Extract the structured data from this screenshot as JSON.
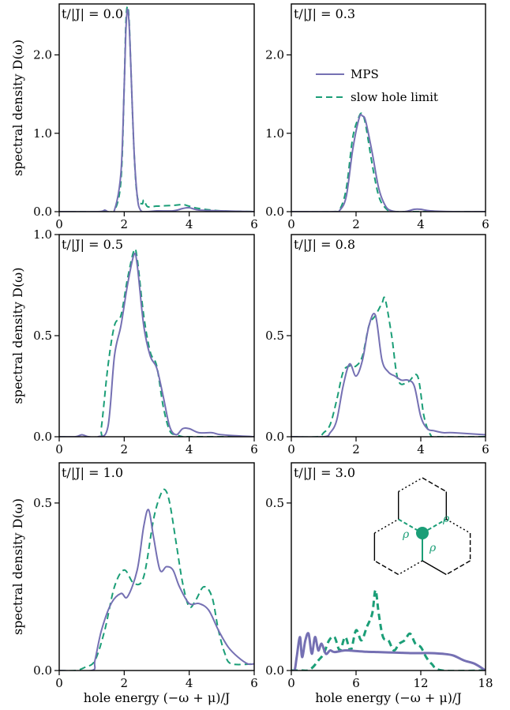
{
  "colors": {
    "mps": "#7570b3",
    "slow": "#1b9e77",
    "lattice": "#000000"
  },
  "figure": {
    "ylabel": "spectral density D(ω)",
    "xlabel": "hole energy (−ω + μ)/J"
  },
  "legend": {
    "placement": "upper-right of panel t/|J| = 0.3",
    "entries": [
      {
        "label": "MPS",
        "style": "solid",
        "color": "#7570b3"
      },
      {
        "label": "slow hole limit",
        "style": "dashed",
        "color": "#1b9e77"
      }
    ]
  },
  "inset": {
    "description_icon": "honeycomb-lattice-icon",
    "bond_label": "ρ"
  },
  "chart_data": [
    {
      "type": "line",
      "panel_label": "t/|J| = 0.0",
      "xlim": [
        0,
        6
      ],
      "ylim": [
        0,
        2.65
      ],
      "xticks": [
        0,
        2,
        4,
        6
      ],
      "xtick_labels": [
        "0",
        "2",
        "4",
        "6"
      ],
      "yticks": [
        0,
        1,
        2
      ],
      "ytick_labels": [
        "0.0",
        "1.0",
        "2.0"
      ],
      "show_ylabel": true,
      "show_xlabel": false,
      "series": [
        {
          "name": "MPS",
          "style": "solid",
          "x": [
            0,
            1.2,
            1.4,
            1.5,
            1.7,
            1.9,
            2.0,
            2.05,
            2.1,
            2.15,
            2.2,
            2.3,
            2.4,
            2.5,
            2.7,
            3.0,
            3.5,
            3.8,
            4.0,
            4.3,
            5.0,
            6.0
          ],
          "y": [
            0,
            0,
            0.02,
            0.0,
            0.02,
            0.5,
            1.6,
            2.3,
            2.58,
            2.4,
            1.9,
            0.8,
            0.2,
            0.02,
            0.0,
            0.01,
            0.01,
            0.04,
            0.05,
            0.02,
            0.01,
            0.0
          ]
        },
        {
          "name": "slow hole limit",
          "style": "dashed",
          "x": [
            0,
            1.5,
            1.7,
            1.9,
            2.0,
            2.05,
            2.1,
            2.15,
            2.2,
            2.3,
            2.4,
            2.55,
            2.6,
            2.7,
            2.8,
            3.0,
            3.5,
            3.8,
            4.0,
            4.3,
            5.0,
            6.0
          ],
          "y": [
            0,
            0,
            0.01,
            0.4,
            1.6,
            2.4,
            2.62,
            2.45,
            1.9,
            0.8,
            0.2,
            0.1,
            0.15,
            0.07,
            0.06,
            0.07,
            0.08,
            0.09,
            0.07,
            0.04,
            0.01,
            0.0
          ]
        }
      ]
    },
    {
      "type": "line",
      "panel_label": "t/|J| = 0.3",
      "xlim": [
        0,
        6
      ],
      "ylim": [
        0,
        2.65
      ],
      "xticks": [
        0,
        2,
        4,
        6
      ],
      "xtick_labels": [
        "0",
        "2",
        "4",
        "6"
      ],
      "yticks": [
        0,
        1,
        2
      ],
      "ytick_labels": [
        "0.0",
        "1.0",
        "2.0"
      ],
      "show_ylabel": false,
      "show_xlabel": false,
      "series": [
        {
          "name": "MPS",
          "style": "solid",
          "x": [
            0,
            1.3,
            1.5,
            1.7,
            1.9,
            2.1,
            2.2,
            2.3,
            2.5,
            2.7,
            2.9,
            3.1,
            3.5,
            3.8,
            4.0,
            4.3,
            5.0,
            6.0
          ],
          "y": [
            0,
            0,
            0.02,
            0.2,
            0.8,
            1.2,
            1.22,
            1.15,
            0.75,
            0.3,
            0.08,
            0.01,
            0.0,
            0.03,
            0.03,
            0.01,
            0.0,
            0.0
          ]
        },
        {
          "name": "slow hole limit",
          "style": "dashed",
          "x": [
            0,
            1.3,
            1.5,
            1.7,
            1.9,
            2.1,
            2.2,
            2.3,
            2.5,
            2.7,
            2.9,
            3.1,
            3.5,
            6.0
          ],
          "y": [
            0,
            0,
            0.03,
            0.3,
            0.95,
            1.22,
            1.24,
            1.1,
            0.6,
            0.2,
            0.05,
            0.0,
            0.0,
            0.0
          ]
        }
      ]
    },
    {
      "type": "line",
      "panel_label": "t/|J| = 0.5",
      "xlim": [
        0,
        6
      ],
      "ylim": [
        0,
        1.0
      ],
      "xticks": [
        0,
        2,
        4,
        6
      ],
      "xtick_labels": [
        "0",
        "2",
        "4",
        "6"
      ],
      "yticks": [
        0,
        0.5,
        1.0
      ],
      "ytick_labels": [
        "0.0",
        "0.5",
        "1.0"
      ],
      "show_ylabel": true,
      "show_xlabel": false,
      "series": [
        {
          "name": "MPS",
          "style": "solid",
          "x": [
            0,
            0.5,
            0.7,
            0.9,
            1.2,
            1.5,
            1.7,
            1.9,
            2.1,
            2.3,
            2.4,
            2.6,
            2.8,
            3.0,
            3.2,
            3.4,
            3.6,
            3.8,
            4.0,
            4.3,
            4.7,
            5.0,
            6.0
          ],
          "y": [
            0,
            0.0,
            0.01,
            0.0,
            0.0,
            0.05,
            0.4,
            0.55,
            0.75,
            0.9,
            0.85,
            0.55,
            0.4,
            0.34,
            0.2,
            0.05,
            0.01,
            0.04,
            0.04,
            0.02,
            0.02,
            0.01,
            0.0
          ]
        },
        {
          "name": "slow hole limit",
          "style": "dashed",
          "x": [
            0,
            1.2,
            1.3,
            1.5,
            1.7,
            1.9,
            2.1,
            2.3,
            2.4,
            2.6,
            2.8,
            3.0,
            3.2,
            3.4,
            3.6,
            3.8,
            4.0,
            6.0
          ],
          "y": [
            0,
            0,
            0.05,
            0.35,
            0.55,
            0.6,
            0.78,
            0.92,
            0.88,
            0.6,
            0.42,
            0.35,
            0.15,
            0.03,
            0.01,
            0.0,
            0.0,
            0.0
          ]
        }
      ]
    },
    {
      "type": "line",
      "panel_label": "t/|J| = 0.8",
      "xlim": [
        0,
        6
      ],
      "ylim": [
        0,
        1.0
      ],
      "xticks": [
        0,
        2,
        4,
        6
      ],
      "xtick_labels": [
        "0",
        "2",
        "4",
        "6"
      ],
      "yticks": [
        0,
        0.5
      ],
      "ytick_labels": [
        "0.0",
        "0.5"
      ],
      "show_ylabel": false,
      "show_xlabel": false,
      "series": [
        {
          "name": "MPS",
          "style": "solid",
          "x": [
            0,
            1.0,
            1.2,
            1.4,
            1.6,
            1.8,
            2.0,
            2.2,
            2.4,
            2.6,
            2.8,
            3.0,
            3.2,
            3.4,
            3.6,
            3.8,
            4.0,
            4.2,
            4.4,
            4.7,
            5.0,
            6.0
          ],
          "y": [
            0,
            0,
            0.02,
            0.08,
            0.25,
            0.36,
            0.3,
            0.38,
            0.55,
            0.6,
            0.38,
            0.32,
            0.3,
            0.28,
            0.28,
            0.25,
            0.1,
            0.04,
            0.03,
            0.02,
            0.02,
            0.01
          ]
        },
        {
          "name": "slow hole limit",
          "style": "dashed",
          "x": [
            0,
            0.8,
            1.0,
            1.2,
            1.4,
            1.6,
            1.8,
            2.0,
            2.2,
            2.4,
            2.6,
            2.8,
            2.9,
            3.1,
            3.3,
            3.6,
            3.9,
            4.1,
            4.3,
            4.5,
            6.0
          ],
          "y": [
            0,
            0,
            0.02,
            0.06,
            0.18,
            0.32,
            0.35,
            0.35,
            0.4,
            0.55,
            0.6,
            0.66,
            0.68,
            0.5,
            0.28,
            0.27,
            0.3,
            0.1,
            0.01,
            0.0,
            0.0
          ]
        }
      ]
    },
    {
      "type": "line",
      "panel_label": "t/|J| = 1.0",
      "xlim": [
        0,
        6
      ],
      "ylim": [
        0,
        0.62
      ],
      "xticks": [
        0,
        2,
        4,
        6
      ],
      "xtick_labels": [
        "0",
        "2",
        "4",
        "6"
      ],
      "yticks": [
        0,
        0.5
      ],
      "ytick_labels": [
        "0.0",
        "0.5"
      ],
      "show_ylabel": true,
      "show_xlabel": true,
      "series": [
        {
          "name": "MPS",
          "style": "solid",
          "x": [
            0,
            1.0,
            1.1,
            1.3,
            1.6,
            1.9,
            2.1,
            2.4,
            2.6,
            2.75,
            2.9,
            3.1,
            3.3,
            3.5,
            3.7,
            4.0,
            4.3,
            4.6,
            4.9,
            5.2,
            5.5,
            5.8,
            6.0
          ],
          "y": [
            0,
            0,
            0.03,
            0.12,
            0.2,
            0.23,
            0.22,
            0.3,
            0.43,
            0.48,
            0.4,
            0.3,
            0.31,
            0.3,
            0.25,
            0.2,
            0.2,
            0.18,
            0.12,
            0.07,
            0.04,
            0.02,
            0.02
          ]
        },
        {
          "name": "slow hole limit",
          "style": "dashed",
          "x": [
            0,
            0.5,
            0.8,
            1.1,
            1.4,
            1.7,
            2.0,
            2.3,
            2.6,
            2.9,
            3.1,
            3.25,
            3.4,
            3.6,
            3.8,
            4.0,
            4.2,
            4.45,
            4.7,
            4.9,
            5.1,
            5.3,
            6.0
          ],
          "y": [
            0,
            0,
            0.01,
            0.03,
            0.12,
            0.25,
            0.3,
            0.26,
            0.28,
            0.45,
            0.52,
            0.54,
            0.5,
            0.38,
            0.26,
            0.19,
            0.21,
            0.25,
            0.22,
            0.12,
            0.05,
            0.02,
            0.02
          ]
        }
      ]
    },
    {
      "type": "line",
      "panel_label": "t/|J| = 3.0",
      "xlim": [
        0,
        18
      ],
      "ylim": [
        0,
        0.62
      ],
      "xticks": [
        0,
        6,
        12,
        18
      ],
      "xtick_labels": [
        "0",
        "6",
        "12",
        "18"
      ],
      "yticks": [
        0,
        0.5
      ],
      "ytick_labels": [
        "0.0",
        "0.5"
      ],
      "show_ylabel": false,
      "show_xlabel": true,
      "inset": true,
      "series": [
        {
          "name": "MPS",
          "style": "solid",
          "x": [
            0,
            0.3,
            0.5,
            0.8,
            1.0,
            1.3,
            1.6,
            1.9,
            2.2,
            2.5,
            2.8,
            3.2,
            3.6,
            4.0,
            5.0,
            6.0,
            7.0,
            8.0,
            9.0,
            10.0,
            11.0,
            12.0,
            13.0,
            14.0,
            15.0,
            16.0,
            17.0,
            18.0
          ],
          "y": [
            0,
            0.0,
            0.04,
            0.1,
            0.04,
            0.09,
            0.11,
            0.05,
            0.1,
            0.06,
            0.08,
            0.05,
            0.06,
            0.055,
            0.06,
            0.058,
            0.056,
            0.055,
            0.054,
            0.053,
            0.052,
            0.052,
            0.052,
            0.05,
            0.045,
            0.03,
            0.02,
            0.0
          ]
        },
        {
          "name": "slow hole limit",
          "style": "dashed",
          "x": [
            0,
            0.5,
            1.0,
            1.5,
            2.0,
            2.5,
            3.0,
            3.5,
            4.0,
            4.5,
            5.0,
            5.5,
            6.0,
            6.5,
            7.0,
            7.5,
            7.8,
            8.1,
            8.5,
            9.0,
            9.5,
            10.0,
            10.5,
            11.0,
            11.5,
            12.0,
            12.5,
            13.0,
            14.0,
            18.0
          ],
          "y": [
            0,
            0,
            0,
            0.0,
            0.01,
            0.03,
            0.05,
            0.09,
            0.1,
            0.06,
            0.1,
            0.06,
            0.12,
            0.09,
            0.13,
            0.17,
            0.24,
            0.17,
            0.1,
            0.09,
            0.06,
            0.08,
            0.09,
            0.11,
            0.08,
            0.07,
            0.04,
            0.02,
            0.0,
            0.0
          ]
        }
      ]
    }
  ]
}
